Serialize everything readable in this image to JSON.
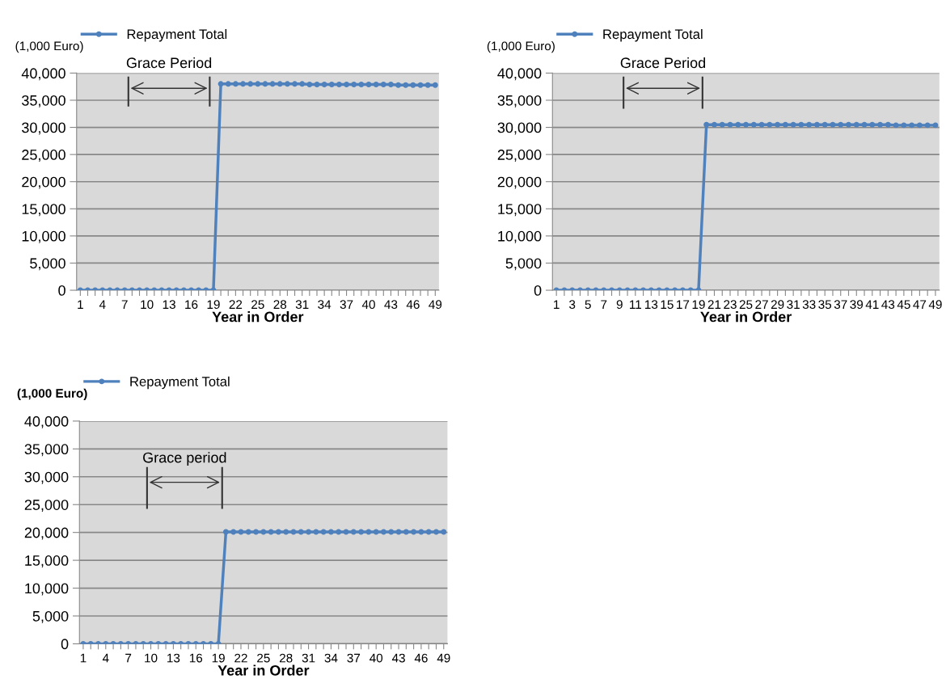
{
  "chart_data": [
    {
      "type": "line",
      "xlabel": "Year in Order",
      "ylabel": "(1,000 Euro)",
      "legend": "top left",
      "grid": "y",
      "marker": "circle",
      "line_style": "solid",
      "annotations": [
        "Grace Period"
      ],
      "categories": [
        "1",
        null,
        null,
        "4",
        null,
        null,
        "7",
        null,
        null,
        "10",
        null,
        null,
        "13",
        null,
        null,
        "16",
        null,
        null,
        "19",
        null,
        null,
        "22",
        null,
        null,
        "25",
        null,
        null,
        "28",
        null,
        null,
        "31",
        null,
        null,
        "34",
        null,
        null,
        "37",
        null,
        null,
        "40",
        null,
        null,
        "43",
        null,
        null,
        "46",
        null,
        null,
        "49"
      ],
      "ylim": [
        0,
        40000
      ],
      "yticks": [
        0,
        {
          "value": 5000,
          "label": "5,000"
        },
        {
          "value": 10000,
          "label": "10,000"
        },
        {
          "value": 15000,
          "label": "15,000"
        },
        {
          "value": 20000,
          "label": "20,000"
        },
        {
          "value": 25000,
          "label": "25,000"
        },
        {
          "value": 30000,
          "label": "30,000"
        },
        {
          "value": 35000,
          "label": "35,000"
        },
        {
          "value": 40000,
          "label": "40,000"
        }
      ],
      "series": [
        {
          "name": "Repayment Total",
          "color": "#4f81bd",
          "values": [
            0,
            0,
            0,
            0,
            0,
            0,
            0,
            0,
            0,
            0,
            0,
            0,
            0,
            0,
            0,
            0,
            0,
            0,
            0,
            38000,
            38000,
            38000,
            38000,
            38000,
            38000,
            38000,
            38000,
            38000,
            38000,
            38000,
            38000,
            37900,
            37900,
            37900,
            37900,
            37900,
            37900,
            37900,
            37900,
            37900,
            37900,
            37900,
            37900,
            37800,
            37800,
            37800,
            37800,
            37800,
            37800
          ]
        }
      ]
    },
    {
      "type": "line",
      "xlabel": "Year in Order",
      "ylabel": "(1,000 Euro)",
      "legend": "top",
      "grid": "y",
      "marker": "circle",
      "line_style": "solid",
      "annotations": [
        "Grace Period"
      ],
      "categories": [
        "1",
        null,
        "3",
        null,
        "5",
        null,
        "7",
        null,
        "9",
        null,
        "11",
        null,
        "13",
        null,
        "15",
        null,
        "17",
        null,
        "19",
        null,
        "21",
        null,
        "23",
        null,
        "25",
        null,
        "27",
        null,
        "29",
        null,
        "31",
        null,
        "33",
        null,
        "35",
        null,
        "37",
        null,
        "39",
        null,
        "41",
        null,
        "43",
        null,
        "45",
        null,
        "47",
        null,
        "49"
      ],
      "ylim": [
        0,
        40000
      ],
      "yticks": [
        0,
        {
          "value": 5000,
          "label": "5,000"
        },
        {
          "value": 10000,
          "label": "10,000"
        },
        {
          "value": 15000,
          "label": "15,000"
        },
        {
          "value": 20000,
          "label": "20,000"
        },
        {
          "value": 25000,
          "label": "25,000"
        },
        {
          "value": 30000,
          "label": "30,000"
        },
        {
          "value": 35000,
          "label": "35,000"
        },
        {
          "value": 40000,
          "label": "40,000"
        }
      ],
      "series": [
        {
          "name": "Repayment Total",
          "color": "#4f81bd",
          "values": [
            0,
            0,
            0,
            0,
            0,
            0,
            0,
            0,
            0,
            0,
            0,
            0,
            0,
            0,
            0,
            0,
            0,
            0,
            0,
            30500,
            30500,
            30500,
            30500,
            30500,
            30500,
            30500,
            30500,
            30500,
            30500,
            30500,
            30500,
            30500,
            30500,
            30500,
            30500,
            30500,
            30500,
            30500,
            30500,
            30500,
            30500,
            30500,
            30500,
            30400,
            30400,
            30400,
            30400,
            30400,
            30400
          ]
        }
      ]
    },
    {
      "type": "line",
      "xlabel": "Year in Order",
      "ylabel": "(1,000 Euro)",
      "legend": "top left",
      "grid": "y",
      "marker": "circle",
      "line_style": "solid",
      "annotations": [
        "Grace period"
      ],
      "categories": [
        "1",
        null,
        null,
        "4",
        null,
        null,
        "7",
        null,
        null,
        "10",
        null,
        null,
        "13",
        null,
        null,
        "16",
        null,
        null,
        "19",
        null,
        null,
        "22",
        null,
        null,
        "25",
        null,
        null,
        "28",
        null,
        null,
        "31",
        null,
        null,
        "34",
        null,
        null,
        "37",
        null,
        null,
        "40",
        null,
        null,
        "43",
        null,
        null,
        "46",
        null,
        null,
        "49"
      ],
      "ylim": [
        0,
        40000
      ],
      "yticks": [
        0,
        {
          "value": 5000,
          "label": "5,000"
        },
        {
          "value": 10000,
          "label": "10,000"
        },
        {
          "value": 15000,
          "label": "15,000"
        },
        {
          "value": 20000,
          "label": "20,000"
        },
        {
          "value": 25000,
          "label": "25,000"
        },
        {
          "value": 30000,
          "label": "30,000"
        },
        {
          "value": 35000,
          "label": "35,000"
        },
        {
          "value": 40000,
          "label": "40,000"
        }
      ],
      "series": [
        {
          "name": "Repayment Total",
          "color": "#4f81bd",
          "values": [
            0,
            0,
            0,
            0,
            0,
            0,
            0,
            0,
            0,
            0,
            0,
            0,
            0,
            0,
            0,
            0,
            0,
            0,
            0,
            20100,
            20100,
            20100,
            20100,
            20100,
            20100,
            20100,
            20100,
            20100,
            20100,
            20100,
            20100,
            20100,
            20100,
            20100,
            20100,
            20100,
            20100,
            20100,
            20100,
            20100,
            20100,
            20100,
            20100,
            20100,
            20100,
            20100,
            20100,
            20100,
            20100
          ]
        }
      ]
    }
  ]
}
